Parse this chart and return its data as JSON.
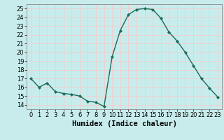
{
  "x": [
    0,
    1,
    2,
    3,
    4,
    5,
    6,
    7,
    8,
    9,
    10,
    11,
    12,
    13,
    14,
    15,
    16,
    17,
    18,
    19,
    20,
    21,
    22,
    23
  ],
  "y": [
    17.0,
    16.0,
    16.5,
    15.5,
    15.3,
    15.2,
    15.0,
    14.4,
    14.3,
    13.8,
    19.5,
    22.5,
    24.3,
    24.9,
    25.0,
    24.9,
    23.9,
    22.3,
    21.3,
    20.0,
    18.5,
    17.0,
    15.9,
    14.9
  ],
  "line_color": "#1a6b5a",
  "marker": "D",
  "marker_size": 2.0,
  "bg_color": "#c8ecec",
  "grid_color_h": "#f0d0d0",
  "grid_color_v": "#f0d0d0",
  "xlabel": "Humidex (Indice chaleur)",
  "ylim": [
    13.5,
    25.5
  ],
  "xlim": [
    -0.5,
    23.5
  ],
  "yticks": [
    14,
    15,
    16,
    17,
    18,
    19,
    20,
    21,
    22,
    23,
    24,
    25
  ],
  "xticks": [
    0,
    1,
    2,
    3,
    4,
    5,
    6,
    7,
    8,
    9,
    10,
    11,
    12,
    13,
    14,
    15,
    16,
    17,
    18,
    19,
    20,
    21,
    22,
    23
  ],
  "xlabel_fontsize": 7.5,
  "tick_fontsize": 6.0,
  "linewidth": 1.0
}
